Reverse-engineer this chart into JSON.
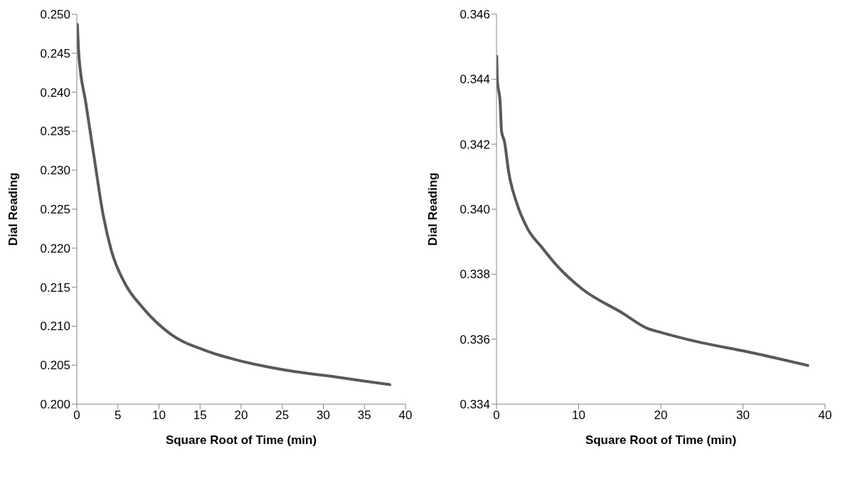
{
  "chart_data": [
    {
      "type": "line",
      "xlabel": "Square Root of Time (min)",
      "ylabel": "Dial Reading",
      "xlim": [
        0,
        40
      ],
      "xticks": [
        0,
        5,
        10,
        15,
        20,
        25,
        30,
        35,
        40
      ],
      "ylim": [
        0.2,
        0.25
      ],
      "yticks": [
        {
          "value": 0.2,
          "label": "0.200"
        },
        {
          "value": 0.205,
          "label": "0.205"
        },
        {
          "value": 0.21,
          "label": "0.210"
        },
        {
          "value": 0.215,
          "label": "0.215"
        },
        {
          "value": 0.22,
          "label": "0.220"
        },
        {
          "value": 0.225,
          "label": "0.225"
        },
        {
          "value": 0.23,
          "label": "0.230"
        },
        {
          "value": 0.235,
          "label": "0.235"
        },
        {
          "value": 0.24,
          "label": "0.240"
        },
        {
          "value": 0.245,
          "label": "0.245"
        },
        {
          "value": 0.25,
          "label": "0.250"
        }
      ],
      "grid": false,
      "legend": false,
      "marker": "none",
      "line_style": "solid",
      "series": [
        {
          "color": "#595959",
          "x": [
            0.07,
            0.24,
            1.1,
            2.1,
            3.2,
            4.2,
            5.9,
            8.0,
            11.4,
            15.6,
            19.7,
            25.2,
            32.1,
            38.1
          ],
          "values": [
            0.2487,
            0.2449,
            0.2386,
            0.2317,
            0.2243,
            0.2197,
            0.2154,
            0.2124,
            0.209,
            0.2069,
            0.2056,
            0.2044,
            0.2034,
            0.2025
          ]
        }
      ]
    },
    {
      "type": "line",
      "xlabel": "Square Root of Time (min)",
      "ylabel": "Dial Reading",
      "xlim": [
        0,
        40
      ],
      "xticks": [
        0,
        10,
        20,
        30,
        40
      ],
      "ylim": [
        0.334,
        0.346
      ],
      "yticks": [
        {
          "value": 0.334,
          "label": "0.334"
        },
        {
          "value": 0.336,
          "label": "0.336"
        },
        {
          "value": 0.338,
          "label": "0.338"
        },
        {
          "value": 0.34,
          "label": "0.340"
        },
        {
          "value": 0.342,
          "label": "0.342"
        },
        {
          "value": 0.344,
          "label": "0.344"
        },
        {
          "value": 0.346,
          "label": "0.346"
        }
      ],
      "grid": false,
      "legend": false,
      "marker": "none",
      "line_style": "solid",
      "series": [
        {
          "color": "#595959",
          "x": [
            0.03,
            0.1,
            0.45,
            0.62,
            0.97,
            1.5,
            2.5,
            3.7,
            5.6,
            7.4,
            10.5,
            15.3,
            18.4,
            20.0,
            24.3,
            30.6,
            37.9
          ],
          "values": [
            0.34471,
            0.34399,
            0.34327,
            0.34239,
            0.34208,
            0.34112,
            0.34016,
            0.33944,
            0.3388,
            0.33825,
            0.33753,
            0.33681,
            0.33633,
            0.33621,
            0.33593,
            0.33561,
            0.33519
          ]
        }
      ]
    }
  ]
}
